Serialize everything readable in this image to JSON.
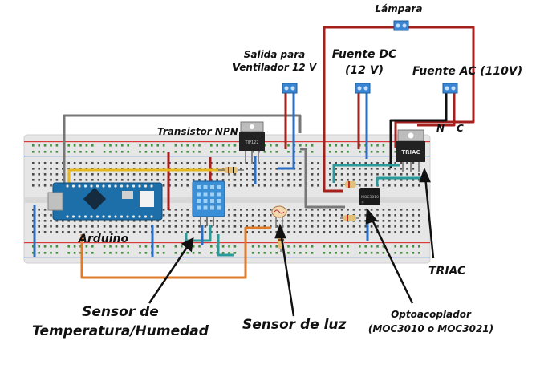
{
  "labels": {
    "lampara": "Lámpara",
    "salida_line1": "Salida para",
    "salida_line2": "Ventilador 12 V",
    "fuente_dc_line1": "Fuente DC",
    "fuente_dc_line2": "(12 V)",
    "fuente_ac": "Fuente AC (110V)",
    "neutral": "N",
    "common": "C",
    "transistor": "Transistor NPN",
    "arduino": "Arduino",
    "triac": "TRIAC",
    "sensor_temp_line1": "Sensor de",
    "sensor_temp_line2": "Temperatura/Humedad",
    "sensor_luz": "Sensor de luz",
    "opto_line1": "Optoacoplador",
    "opto_line2": "(MOC3010 o MOC3021)"
  },
  "chip_labels": {
    "triac": "TRIAC",
    "opto": "MOC3010",
    "transistor": "TIP122"
  },
  "colors": {
    "breadboard": "#e6e6e6",
    "rail_red": "#d93a3a",
    "rail_blue": "#3a6fd9",
    "hole": "#4a4a4a",
    "hole_rail": "#3f8f3f",
    "wire_red": "#a3201c",
    "wire_blue": "#2b6fc4",
    "wire_teal": "#2a9a9a",
    "wire_orange": "#e07b2a",
    "wire_gray": "#777777",
    "wire_yellow": "#e6b820",
    "wire_black": "#111111",
    "arduino_pcb": "#1c6fa8",
    "sensor_blue": "#3b8fd6",
    "terminal_blue": "#3a86d6"
  }
}
